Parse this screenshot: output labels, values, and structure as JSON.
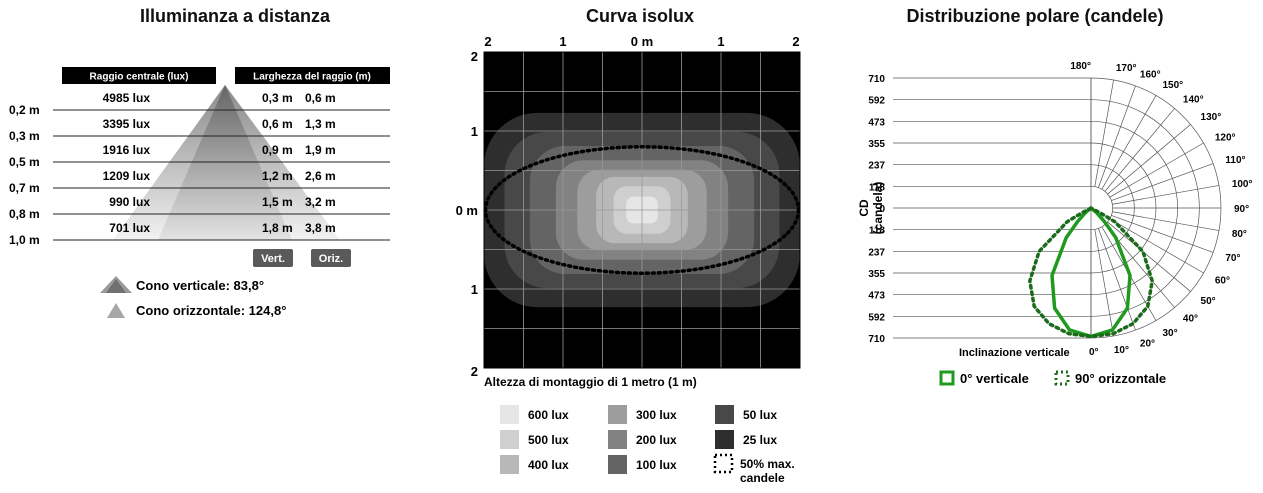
{
  "panels": {
    "left_title": "Illuminanza a distanza",
    "center_title": "Curva isolux",
    "right_title": "Distribuzione polare (candele)"
  },
  "chart_data": [
    {
      "type": "table",
      "title": "Illuminanza a distanza",
      "headers": {
        "center": "Raggio centrale (lux)",
        "width": "Larghezza del raggio (m)"
      },
      "rows": [
        {
          "distance": "0,2 m",
          "lux": "4985 lux",
          "vert": "0,3 m",
          "horiz": "0,6 m"
        },
        {
          "distance": "0,3 m",
          "lux": "3395 lux",
          "vert": "0,6 m",
          "horiz": "1,3 m"
        },
        {
          "distance": "0,5 m",
          "lux": "1916 lux",
          "vert": "0,9 m",
          "horiz": "1,9 m"
        },
        {
          "distance": "0,7 m",
          "lux": "1209 lux",
          "vert": "1,2 m",
          "horiz": "2,6 m"
        },
        {
          "distance": "0,8 m",
          "lux": "990 lux",
          "vert": "1,5 m",
          "horiz": "3,2 m"
        },
        {
          "distance": "1,0 m",
          "lux": "701 lux",
          "vert": "1,8 m",
          "horiz": "3,8 m"
        }
      ],
      "badges": {
        "vert": "Vert.",
        "horiz": "Oriz."
      },
      "legend": [
        {
          "label": "Cono verticale: 83,8°",
          "color": "#707070"
        },
        {
          "label": "Cono orizzontale: 124,8°",
          "color": "#a8a8a8"
        }
      ],
      "colors": {
        "header_bg": "#000000",
        "badge_bg": "#5a5a5a"
      }
    },
    {
      "type": "heatmap",
      "title": "Curva isolux",
      "x_ticks": [
        "2",
        "1",
        "0 m",
        "1",
        "2"
      ],
      "y_ticks": [
        "2",
        "1",
        "0 m",
        "1",
        "2"
      ],
      "xlim": [
        -2,
        2
      ],
      "ylim": [
        -2,
        2
      ],
      "grid": true,
      "xlabel": "Altezza di montaggio di 1 metro (1 m)",
      "levels": [
        {
          "lux": 25,
          "rx": 2.0,
          "ry": 1.23,
          "color": "#2e2e2e"
        },
        {
          "lux": 50,
          "rx": 1.74,
          "ry": 0.99,
          "color": "#484848"
        },
        {
          "lux": 100,
          "rx": 1.42,
          "ry": 0.81,
          "color": "#646464"
        },
        {
          "lux": 200,
          "rx": 1.09,
          "ry": 0.63,
          "color": "#828282"
        },
        {
          "lux": 300,
          "rx": 0.82,
          "ry": 0.51,
          "color": "#9d9d9d"
        },
        {
          "lux": 400,
          "rx": 0.58,
          "ry": 0.42,
          "color": "#b8b8b8"
        },
        {
          "lux": 500,
          "rx": 0.36,
          "ry": 0.3,
          "color": "#cfcfcf"
        },
        {
          "lux": 600,
          "rx": 0.2,
          "ry": 0.17,
          "color": "#e6e6e6"
        }
      ],
      "half_max_ellipse": {
        "rx": 1.98,
        "ry": 0.8
      },
      "legend": [
        {
          "label": "600 lux",
          "color": "#e6e6e6"
        },
        {
          "label": "500 lux",
          "color": "#cfcfcf"
        },
        {
          "label": "400 lux",
          "color": "#b8b8b8"
        },
        {
          "label": "300 lux",
          "color": "#9d9d9d"
        },
        {
          "label": "200 lux",
          "color": "#828282"
        },
        {
          "label": "100 lux",
          "color": "#646464"
        },
        {
          "label": "50 lux",
          "color": "#484848"
        },
        {
          "label": "25 lux",
          "color": "#2e2e2e"
        },
        {
          "label": "50% max. candele",
          "color": "dotted"
        }
      ]
    },
    {
      "type": "polar",
      "title": "Distribuzione polare (candele)",
      "ylabel": "CD\n(candela)",
      "r_ticks": [
        "710",
        "592",
        "473",
        "355",
        "237",
        "118",
        "0",
        "118",
        "237",
        "355",
        "473",
        "592",
        "710"
      ],
      "r_max": 710,
      "angle_ticks": [
        "0°",
        "10°",
        "20°",
        "30°",
        "40°",
        "50°",
        "60°",
        "70°",
        "80°",
        "90°",
        "100°",
        "110°",
        "120°",
        "130°",
        "140°",
        "150°",
        "160°",
        "170°",
        "180°"
      ],
      "axis_label": "Inclinazione verticale",
      "series": [
        {
          "name": "0° verticale",
          "color": "#1f9a1f",
          "style": "solid",
          "angles": [
            0,
            10,
            20,
            30,
            40,
            45,
            50,
            60
          ],
          "values": [
            701,
            676,
            582,
            426,
            210,
            100,
            40,
            0
          ]
        },
        {
          "name": "90° orizzontale",
          "color": "#1c6a1c",
          "style": "dotted",
          "angles": [
            0,
            10,
            20,
            30,
            40,
            50,
            60,
            62,
            65
          ],
          "values": [
            701,
            697,
            672,
            620,
            520,
            370,
            150,
            60,
            0
          ]
        }
      ]
    }
  ]
}
